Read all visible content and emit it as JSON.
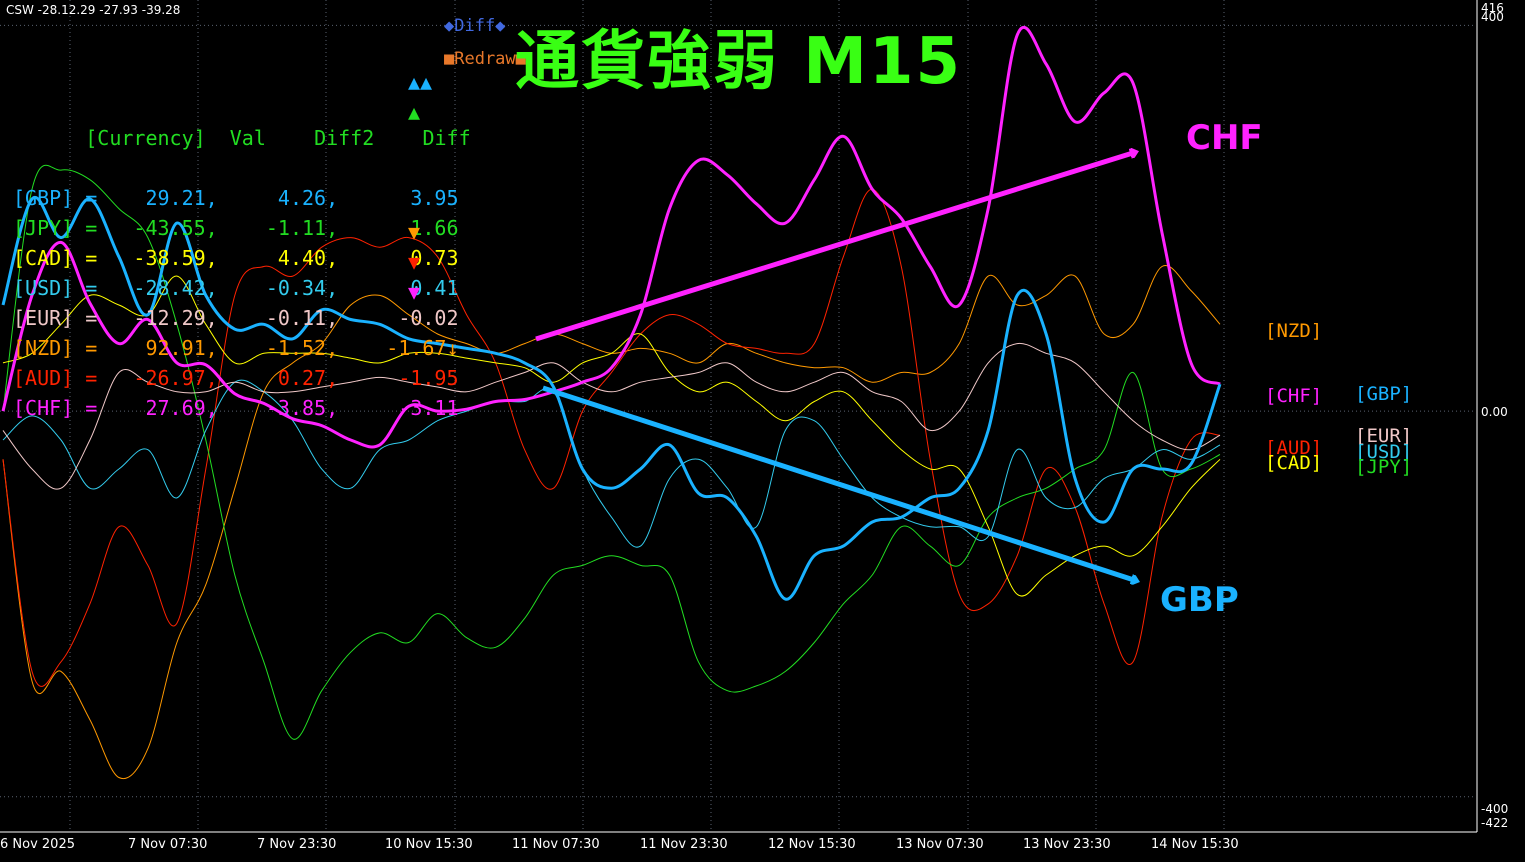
{
  "header_text": "CSW -28.12.29 -27.93 -39.28",
  "title": "通貨強弱 M15",
  "buttons": {
    "diff": "◆Diff◆",
    "redraw": "■Redraw■"
  },
  "table": {
    "header": {
      "currency": "[Currency]",
      "val": "Val",
      "diff2": "Diff2",
      "diff": "Diff"
    },
    "rows": [
      {
        "currency": "[GBP]",
        "eq": "=",
        "val": "29.21,",
        "diff2": "4.26,",
        "diff": "3.95",
        "signal": "▲▲",
        "color": "#1ab2ff"
      },
      {
        "currency": "[JPY]",
        "eq": "=",
        "val": "-43.55,",
        "diff2": "-1.11,",
        "diff": "1.66",
        "signal": "▲",
        "color": "#22dd22"
      },
      {
        "currency": "[CAD]",
        "eq": "=",
        "val": "-38.59,",
        "diff2": "4.40,",
        "diff": "0.73",
        "signal": "",
        "color": "#ffff00"
      },
      {
        "currency": "[USD]",
        "eq": "=",
        "val": "-28.42,",
        "diff2": "-0.34,",
        "diff": "0.41",
        "signal": "",
        "color": "#33ccee"
      },
      {
        "currency": "[EUR]",
        "eq": "=",
        "val": "-12.29,",
        "diff2": "-0.11,",
        "diff": "-0.02",
        "signal": "",
        "color": "#f0c8c8"
      },
      {
        "currency": "[NZD]",
        "eq": "=",
        "val": "92.91,",
        "diff2": "-1.52,",
        "diff": "-1.67↓",
        "signal": "▼",
        "color": "#ff9900"
      },
      {
        "currency": "[AUD]",
        "eq": "=",
        "val": "-26.97,",
        "diff2": "0.27,",
        "diff": "-1.95",
        "signal": "▼",
        "color": "#ff2200"
      },
      {
        "currency": "[CHF]",
        "eq": "=",
        "val": "27.69,",
        "diff2": "-3.85,",
        "diff": "-3.11",
        "signal": "▼",
        "color": "#ff22ff"
      }
    ]
  },
  "annotations": {
    "chf": "CHF",
    "gbp": "GBP"
  },
  "right_labels": {
    "nzd": "[NZD]",
    "chf": "[CHF]",
    "gbp": "[GBP]",
    "eur": "[EUR]",
    "aud": "[AUD]",
    "usd": "[USD]",
    "cad": "[CAD]",
    "jpy": "[JPY]"
  },
  "colors": {
    "background": "#000000",
    "grid": "#5a6270",
    "gbp": "#1ab2ff",
    "chf": "#ff22ff",
    "jpy": "#22dd22",
    "cad": "#ffff00",
    "usd": "#33ccee",
    "eur": "#f0c8c8",
    "nzd": "#ff9900",
    "aud": "#ff2200",
    "title": "#39ff14"
  },
  "chart_data": {
    "type": "line",
    "ylim": [
      -422,
      416
    ],
    "y_ticks": [
      "416",
      "400",
      "0.00",
      "-400",
      "-422"
    ],
    "x_ticks": [
      "6 Nov 2025",
      "7 Nov 07:30",
      "7 Nov 23:30",
      "10 Nov 15:30",
      "11 Nov 07:30",
      "11 Nov 23:30",
      "12 Nov 15:30",
      "13 Nov 07:30",
      "13 Nov 23:30",
      "14 Nov 15:30"
    ],
    "grid": true,
    "series": [
      {
        "name": "CHF",
        "color": "#ff22ff",
        "width": 3,
        "values": [
          0,
          120,
          175,
          112,
          70,
          95,
          50,
          48,
          18,
          8,
          -8,
          -15,
          -30,
          -35,
          5,
          0,
          2,
          10,
          12,
          20,
          30,
          45,
          100,
          210,
          260,
          245,
          215,
          195,
          240,
          285,
          230,
          200,
          150,
          110,
          210,
          390,
          360,
          300,
          330,
          340,
          185,
          50,
          28
        ]
      },
      {
        "name": "GBP",
        "color": "#1ab2ff",
        "width": 3,
        "values": [
          110,
          220,
          180,
          220,
          160,
          100,
          195,
          120,
          85,
          90,
          75,
          105,
          95,
          90,
          75,
          70,
          65,
          60,
          50,
          25,
          -60,
          -80,
          -60,
          -35,
          -85,
          -90,
          -130,
          -195,
          -150,
          -140,
          -115,
          -110,
          -90,
          -80,
          -20,
          120,
          80,
          -70,
          -115,
          -60,
          -60,
          -55,
          28
        ]
      },
      {
        "name": "NZD",
        "color": "#ff9900",
        "width": 1,
        "values": [
          -50,
          -280,
          -270,
          -320,
          -380,
          -350,
          -240,
          -180,
          -80,
          20,
          50,
          70,
          110,
          120,
          100,
          80,
          70,
          60,
          70,
          80,
          70,
          60,
          65,
          60,
          50,
          70,
          60,
          50,
          45,
          45,
          30,
          40,
          40,
          70,
          140,
          110,
          120,
          140,
          80,
          90,
          150,
          125,
          90
        ]
      },
      {
        "name": "AUD",
        "color": "#ff2200",
        "width": 1,
        "values": [
          -50,
          -270,
          -260,
          -200,
          -120,
          -160,
          -220,
          -60,
          120,
          150,
          140,
          170,
          180,
          170,
          180,
          160,
          100,
          50,
          -40,
          -80,
          0,
          40,
          80,
          100,
          90,
          70,
          65,
          60,
          70,
          160,
          230,
          150,
          -50,
          -190,
          -200,
          -150,
          -60,
          -100,
          -200,
          -260,
          -110,
          -30,
          -25
        ]
      },
      {
        "name": "JPY",
        "color": "#22dd22",
        "width": 1,
        "values": [
          0,
          230,
          250,
          240,
          210,
          180,
          90,
          -30,
          -170,
          -260,
          -340,
          -290,
          -250,
          -230,
          -240,
          -210,
          -235,
          -245,
          -215,
          -170,
          -160,
          -150,
          -160,
          -170,
          -260,
          -290,
          -285,
          -270,
          -240,
          -200,
          -170,
          -120,
          -140,
          -160,
          -110,
          -90,
          -80,
          -60,
          -40,
          40,
          -60,
          -60,
          -45
        ]
      },
      {
        "name": "CAD",
        "color": "#ffff00",
        "width": 1,
        "values": [
          50,
          60,
          90,
          120,
          110,
          100,
          140,
          90,
          50,
          60,
          60,
          60,
          55,
          50,
          60,
          60,
          55,
          50,
          45,
          30,
          50,
          60,
          80,
          40,
          20,
          30,
          10,
          -10,
          10,
          20,
          -10,
          -40,
          -60,
          -60,
          -120,
          -190,
          -170,
          -150,
          -140,
          -150,
          -120,
          -80,
          -50
        ]
      },
      {
        "name": "USD",
        "color": "#33ccee",
        "width": 1,
        "values": [
          -30,
          -5,
          -30,
          -80,
          -60,
          -40,
          -90,
          -20,
          30,
          20,
          -10,
          -60,
          -80,
          -40,
          -30,
          -10,
          0,
          10,
          10,
          20,
          -60,
          -110,
          -140,
          -70,
          -50,
          -80,
          -120,
          -20,
          -10,
          -50,
          -90,
          -110,
          -120,
          -120,
          -130,
          -40,
          -90,
          -100,
          -70,
          -60,
          -40,
          -50,
          -35
        ]
      },
      {
        "name": "EUR",
        "color": "#f0c8c8",
        "width": 1,
        "values": [
          -20,
          -60,
          -80,
          -30,
          40,
          30,
          20,
          20,
          30,
          20,
          20,
          25,
          30,
          35,
          30,
          25,
          20,
          30,
          40,
          50,
          30,
          20,
          30,
          35,
          40,
          50,
          30,
          20,
          30,
          40,
          20,
          10,
          -20,
          0,
          50,
          70,
          60,
          50,
          20,
          -10,
          -30,
          -40,
          -25
        ]
      }
    ]
  }
}
